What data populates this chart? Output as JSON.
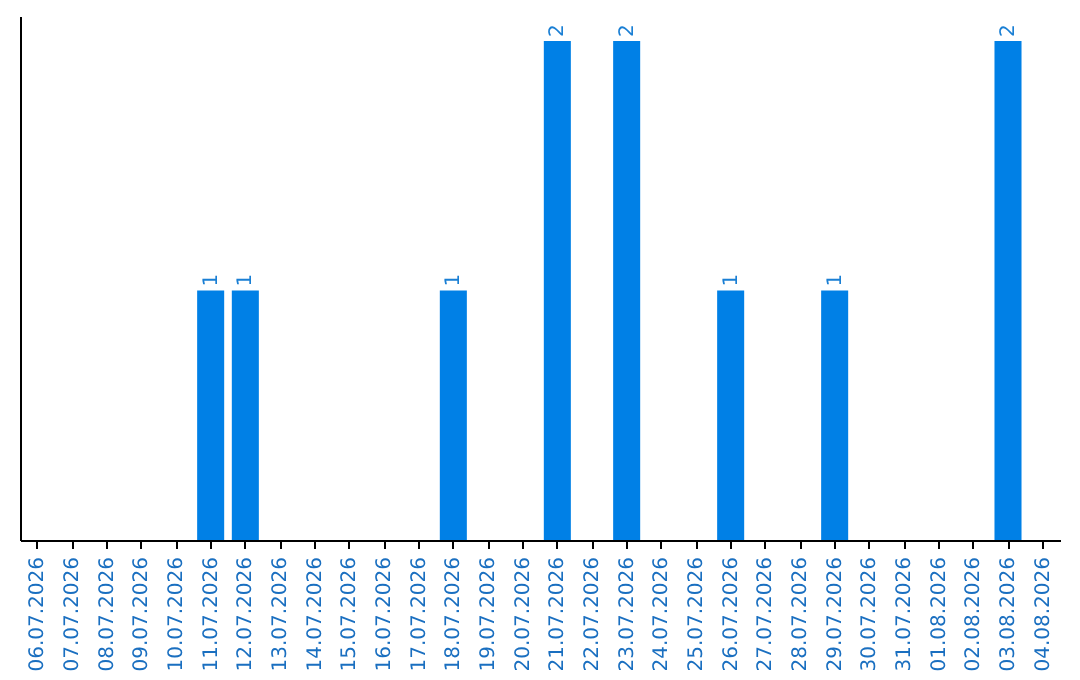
{
  "chart_data": {
    "type": "bar",
    "categories": [
      "06.07.2026",
      "07.07.2026",
      "08.07.2026",
      "09.07.2026",
      "10.07.2026",
      "11.07.2026",
      "12.07.2026",
      "13.07.2026",
      "14.07.2026",
      "15.07.2026",
      "16.07.2026",
      "17.07.2026",
      "18.07.2026",
      "19.07.2026",
      "20.07.2026",
      "21.07.2026",
      "22.07.2026",
      "23.07.2026",
      "24.07.2026",
      "25.07.2026",
      "26.07.2026",
      "27.07.2026",
      "28.07.2026",
      "29.07.2026",
      "30.07.2026",
      "31.07.2026",
      "01.08.2026",
      "02.08.2026",
      "03.08.2026",
      "04.08.2026"
    ],
    "values": [
      0,
      0,
      0,
      0,
      0,
      1,
      1,
      0,
      0,
      0,
      0,
      0,
      1,
      0,
      0,
      2,
      0,
      2,
      0,
      0,
      1,
      0,
      0,
      1,
      0,
      0,
      0,
      0,
      2,
      0
    ],
    "value_labels": [
      null,
      null,
      null,
      null,
      null,
      "1",
      "1",
      null,
      null,
      null,
      null,
      null,
      "1",
      null,
      null,
      "2",
      null,
      "2",
      null,
      null,
      "1",
      null,
      null,
      "1",
      null,
      null,
      null,
      null,
      "2",
      null
    ],
    "color": "#0080e6",
    "ylim": [
      0,
      2.1
    ],
    "tick_labels": "x"
  }
}
